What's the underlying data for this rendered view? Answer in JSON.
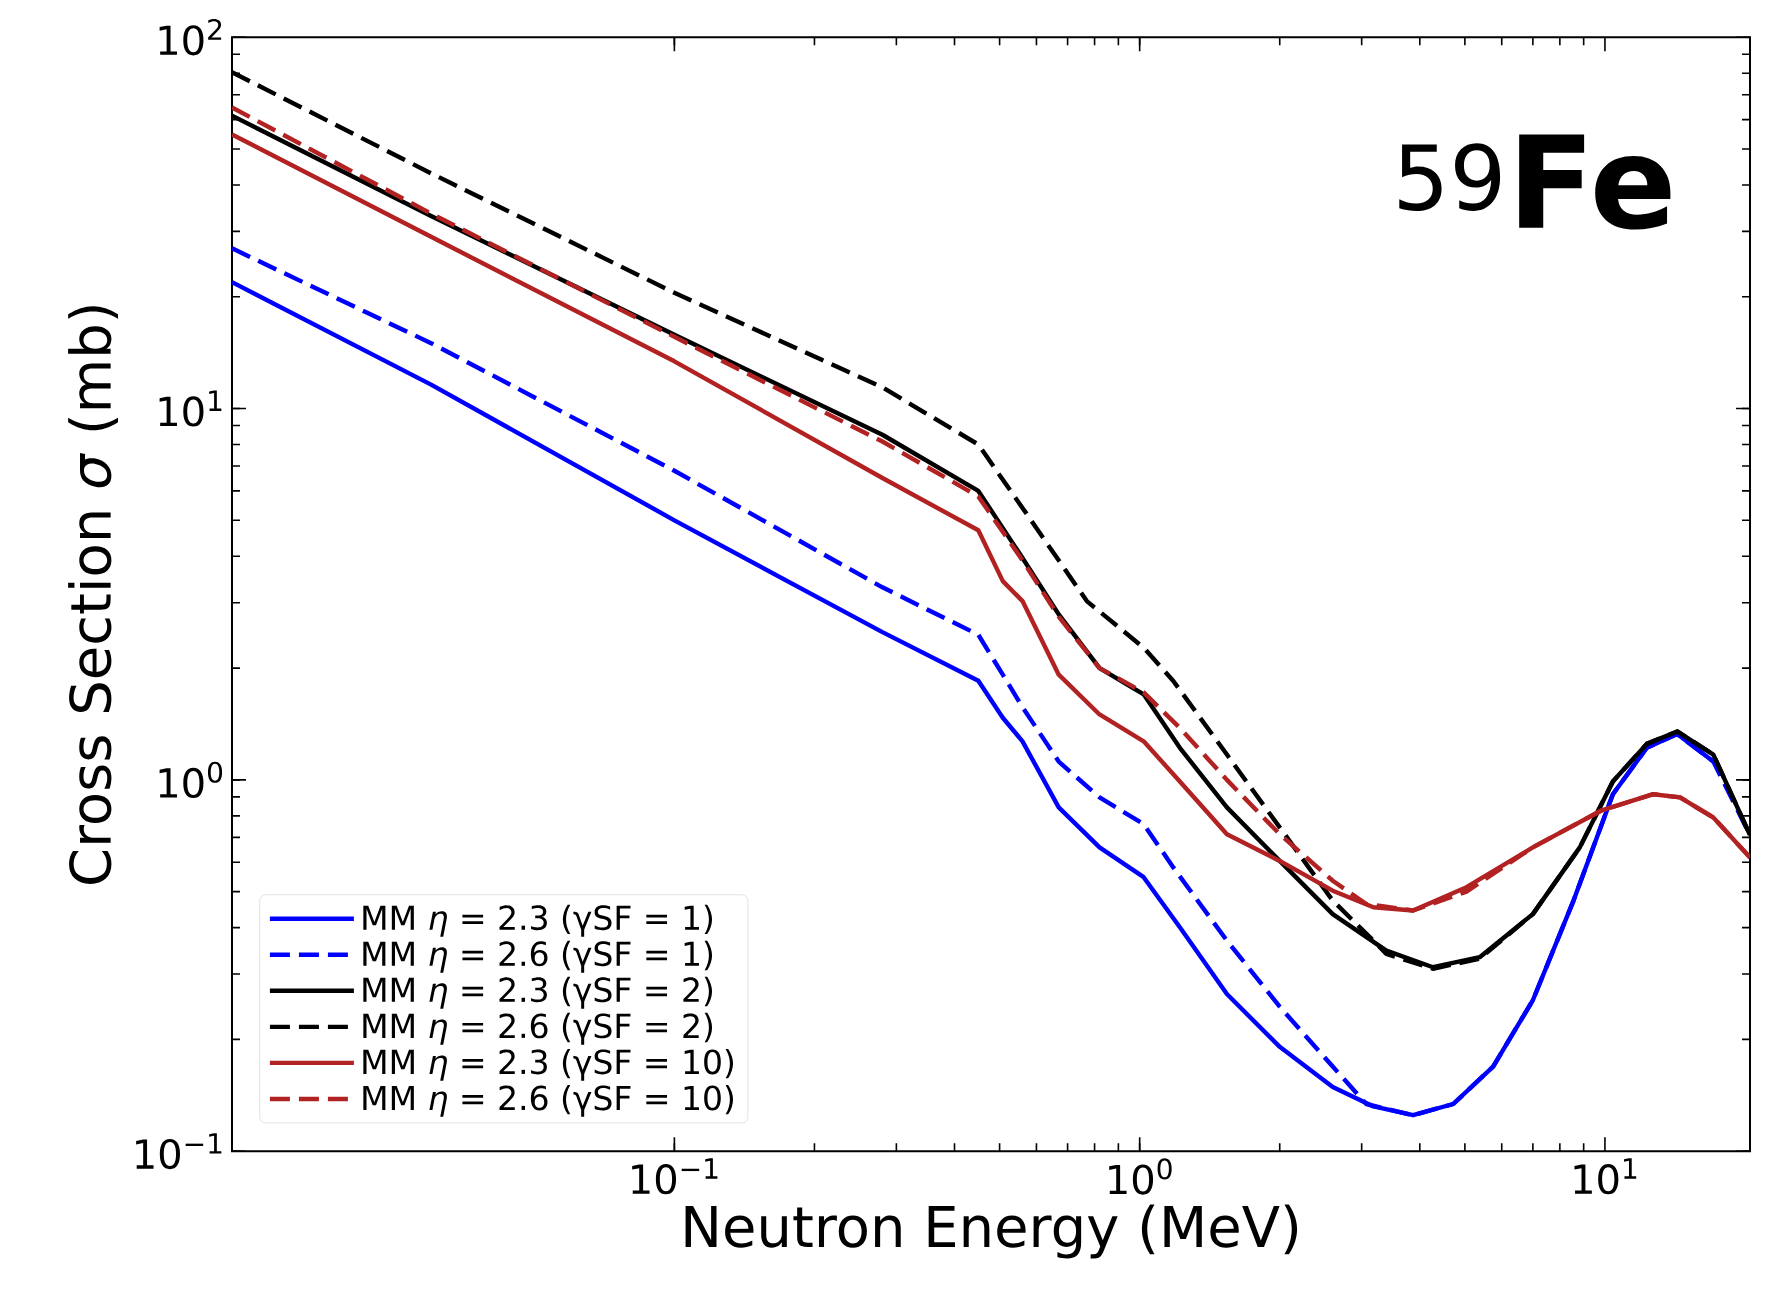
{
  "chart_data": {
    "type": "line",
    "xlabel": "Neutron Energy (MeV)",
    "ylabel": "Cross Section *σ* (mb)",
    "annotations": [
      "$^{59}$**Fe**"
    ],
    "log": "xy",
    "xlim": [
      0.0112,
      20.5
    ],
    "ylim": [
      0.1,
      100
    ],
    "xticks": [
      {
        "value": 0.1,
        "label": "10$^{−1}$"
      },
      {
        "value": 1,
        "label": "10$^{0}$"
      },
      {
        "value": 10,
        "label": "10$^{1}$"
      }
    ],
    "yticks": [
      {
        "value": 0.1,
        "label": "10$^{−1}$"
      },
      {
        "value": 1,
        "label": "10$^{0}$"
      },
      {
        "value": 10,
        "label": "10$^{1}$"
      },
      {
        "value": 100,
        "label": "10$^{2}$"
      }
    ],
    "legend": "bottom left",
    "series": [
      {
        "name": "MM *η* = 2.3 (γSF = 1)",
        "color": "#0000ff",
        "line_style": "solid",
        "x": [
          0.0112,
          0.03,
          0.1,
          0.28,
          0.45,
          0.508,
          0.56,
          0.67,
          0.82,
          1.02,
          1.22,
          1.54,
          2.0,
          2.6,
          3.18,
          3.87,
          4.72,
          5.75,
          7.0,
          8.56,
          10.4,
          12.3,
          14.3,
          17.1
        ],
        "values": [
          21.9,
          11.6,
          5.0,
          2.5,
          1.85,
          1.47,
          1.27,
          0.843,
          0.658,
          0.547,
          0.401,
          0.265,
          0.191,
          0.149,
          0.132,
          0.125,
          0.134,
          0.169,
          0.255,
          0.473,
          0.915,
          1.22,
          1.33,
          1.12
        ]
      },
      {
        "name": "MM *η* = 2.6 (γSF = 1)",
        "color": "#0000ff",
        "line_style": "dashed",
        "x": [
          0.0112,
          0.03,
          0.1,
          0.28,
          0.45,
          0.508,
          0.56,
          0.67,
          0.82,
          1.02,
          1.18,
          1.54,
          2.0,
          2.6,
          3.07,
          3.87,
          4.72,
          5.75,
          7.0,
          8.56,
          10.4,
          12.3,
          14.3,
          17.1,
          20.5
        ],
        "values": [
          27,
          15,
          6.8,
          3.3,
          2.46,
          1.92,
          1.57,
          1.12,
          0.897,
          0.76,
          0.582,
          0.369,
          0.245,
          0.169,
          0.134,
          0.125,
          0.134,
          0.169,
          0.255,
          0.473,
          0.915,
          1.22,
          1.33,
          1.12,
          0.71
        ]
      },
      {
        "name": "MM *η* = 2.3 (γSF = 2)",
        "color": "#000000",
        "line_style": "solid",
        "x": [
          0.0112,
          0.03,
          0.1,
          0.28,
          0.45,
          0.56,
          0.67,
          0.82,
          1.02,
          1.22,
          1.54,
          2.0,
          2.6,
          3.39,
          4.27,
          5.38,
          7.0,
          8.83,
          10.4,
          12.3,
          14.3,
          17.1,
          20.5
        ],
        "values": [
          61.5,
          33,
          15.8,
          8.5,
          6.0,
          3.96,
          2.79,
          2.0,
          1.7,
          1.22,
          0.843,
          0.605,
          0.435,
          0.347,
          0.313,
          0.333,
          0.435,
          0.658,
          0.99,
          1.25,
          1.35,
          1.17,
          0.71
        ]
      },
      {
        "name": "MM *η* = 2.6 (γSF = 2)",
        "color": "#000000",
        "line_style": "dashed",
        "x": [
          0.0112,
          0.03,
          0.1,
          0.28,
          0.45,
          0.56,
          0.77,
          1.02,
          1.18,
          1.54,
          2.0,
          2.6,
          3.18,
          3.39,
          4.27,
          5.38,
          7.0,
          8.83,
          10.4,
          12.3,
          14.3,
          17.1,
          20.5
        ],
        "values": [
          80.5,
          43,
          20.5,
          11.4,
          8.0,
          5.4,
          3.03,
          2.27,
          1.85,
          1.17,
          0.745,
          0.473,
          0.369,
          0.34,
          0.31,
          0.33,
          0.435,
          0.658,
          0.99,
          1.25,
          1.35,
          1.17,
          0.71
        ]
      },
      {
        "name": "MM *η* = 2.3 (γSF = 10)",
        "color": "#b22222",
        "line_style": "solid",
        "x": [
          0.0112,
          0.03,
          0.1,
          0.28,
          0.45,
          0.508,
          0.56,
          0.67,
          0.82,
          1.02,
          1.22,
          1.54,
          2.0,
          2.6,
          3.18,
          3.87,
          5.04,
          7.0,
          9.8,
          12.7,
          14.5,
          17.1,
          20.5
        ],
        "values": [
          54.7,
          29,
          13.4,
          6.5,
          4.7,
          3.43,
          3.03,
          1.92,
          1.5,
          1.27,
          0.99,
          0.714,
          0.605,
          0.503,
          0.454,
          0.445,
          0.514,
          0.658,
          0.826,
          0.915,
          0.897,
          0.792,
          0.618
        ]
      },
      {
        "name": "MM *η* = 2.6 (γSF = 10)",
        "color": "#b22222",
        "line_style": "dashed",
        "x": [
          0.0112,
          0.03,
          0.1,
          0.28,
          0.45,
          0.56,
          0.67,
          0.82,
          1.02,
          1.22,
          1.54,
          2.0,
          2.6,
          3.07,
          3.87,
          5.04,
          7.0,
          9.8,
          12.7,
          14.5,
          17.1,
          20.5
        ],
        "values": [
          64.7,
          33.5,
          15.6,
          8.15,
          5.8,
          3.9,
          2.75,
          2.0,
          1.72,
          1.38,
          1.0,
          0.714,
          0.535,
          0.463,
          0.445,
          0.5,
          0.658,
          0.826,
          0.915,
          0.897,
          0.792,
          0.618
        ]
      }
    ]
  }
}
